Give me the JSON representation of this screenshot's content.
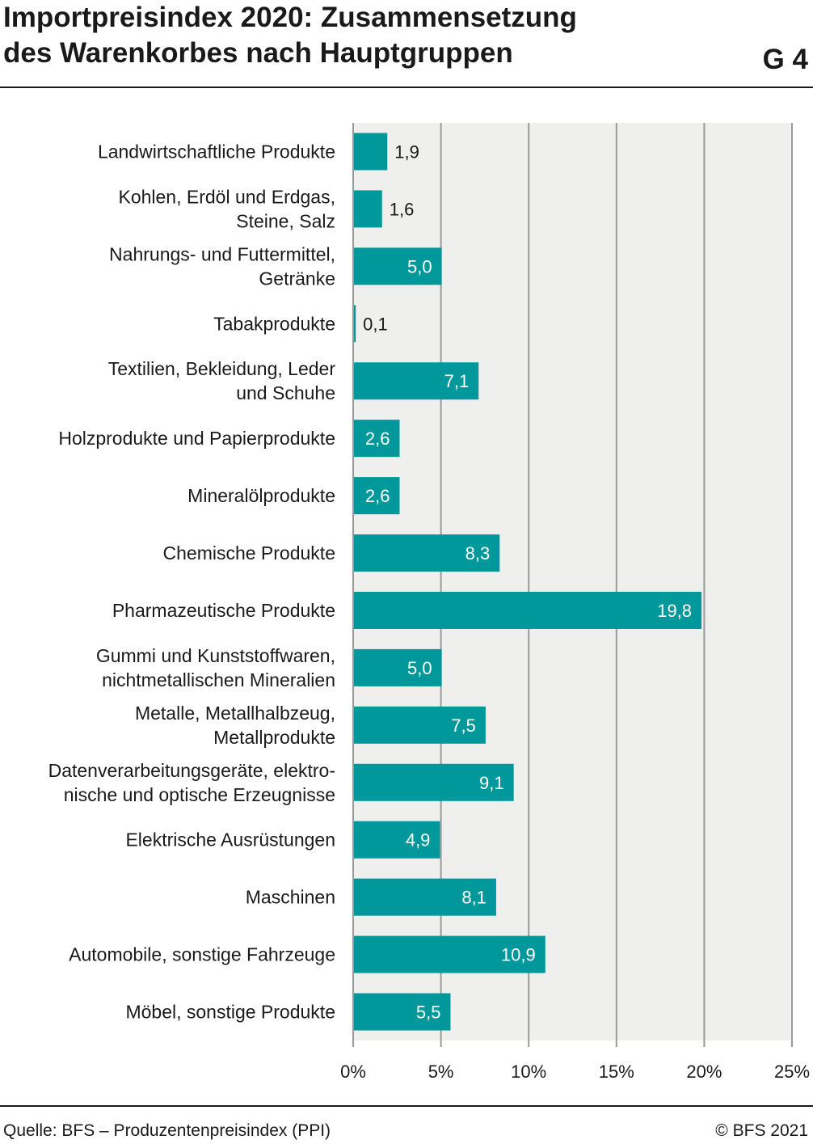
{
  "header": {
    "title_line1": "Importpreisindex 2020: Zusammensetzung",
    "title_line2": "des Warenkorbes nach Hauptgruppen",
    "chart_id": "G 4"
  },
  "footer": {
    "source": "Quelle: BFS – Produzentenpreisindex (PPI)",
    "copyright": "© BFS 2021"
  },
  "colors": {
    "bar": "#00989a",
    "plot_background": "#efefed",
    "grid": "#9a9a9a",
    "text": "#1a1a1a"
  },
  "chart_data": {
    "type": "bar",
    "orientation": "horizontal",
    "title": "Importpreisindex 2020: Zusammensetzung des Warenkorbes nach Hauptgruppen",
    "xlabel": "",
    "ylabel": "",
    "xlim": [
      0,
      25
    ],
    "grid": true,
    "x_ticks": [
      "0%",
      "5%",
      "10%",
      "15%",
      "20%",
      "25%"
    ],
    "x_tick_values": [
      0,
      5,
      10,
      15,
      20,
      25
    ],
    "categories": [
      [
        "Landwirtschaftliche Produkte"
      ],
      [
        "Kohlen, Erdöl und Erdgas,",
        "Steine, Salz"
      ],
      [
        "Nahrungs- und Futtermittel,",
        "Getränke"
      ],
      [
        "Tabakprodukte"
      ],
      [
        "Textilien, Bekleidung, Leder",
        "und Schuhe"
      ],
      [
        "Holzprodukte und Papierprodukte"
      ],
      [
        "Mineralölprodukte"
      ],
      [
        "Chemische Produkte"
      ],
      [
        "Pharmazeutische Produkte"
      ],
      [
        "Gummi und Kunststoffwaren,",
        "nichtmetallischen Mineralien"
      ],
      [
        "Metalle, Metallhalbzeug,",
        "Metallprodukte"
      ],
      [
        "Datenverarbeitungsgeräte, elektro-",
        "nische und optische Erzeugnisse"
      ],
      [
        "Elektrische Ausrüstungen"
      ],
      [
        "Maschinen"
      ],
      [
        "Automobile, sonstige Fahrzeuge"
      ],
      [
        "Möbel, sonstige Produkte"
      ]
    ],
    "values": [
      1.9,
      1.6,
      5.0,
      0.1,
      7.1,
      2.6,
      2.6,
      8.3,
      19.8,
      5.0,
      7.5,
      9.1,
      4.9,
      8.1,
      10.9,
      5.5
    ],
    "data_labels": [
      "1,9",
      "1,6",
      "5,0",
      "0,1",
      "7,1",
      "2,6",
      "2,6",
      "8,3",
      "19,8",
      "5,0",
      "7,5",
      "9,1",
      "4,9",
      "8,1",
      "10,9",
      "5,5"
    ]
  }
}
